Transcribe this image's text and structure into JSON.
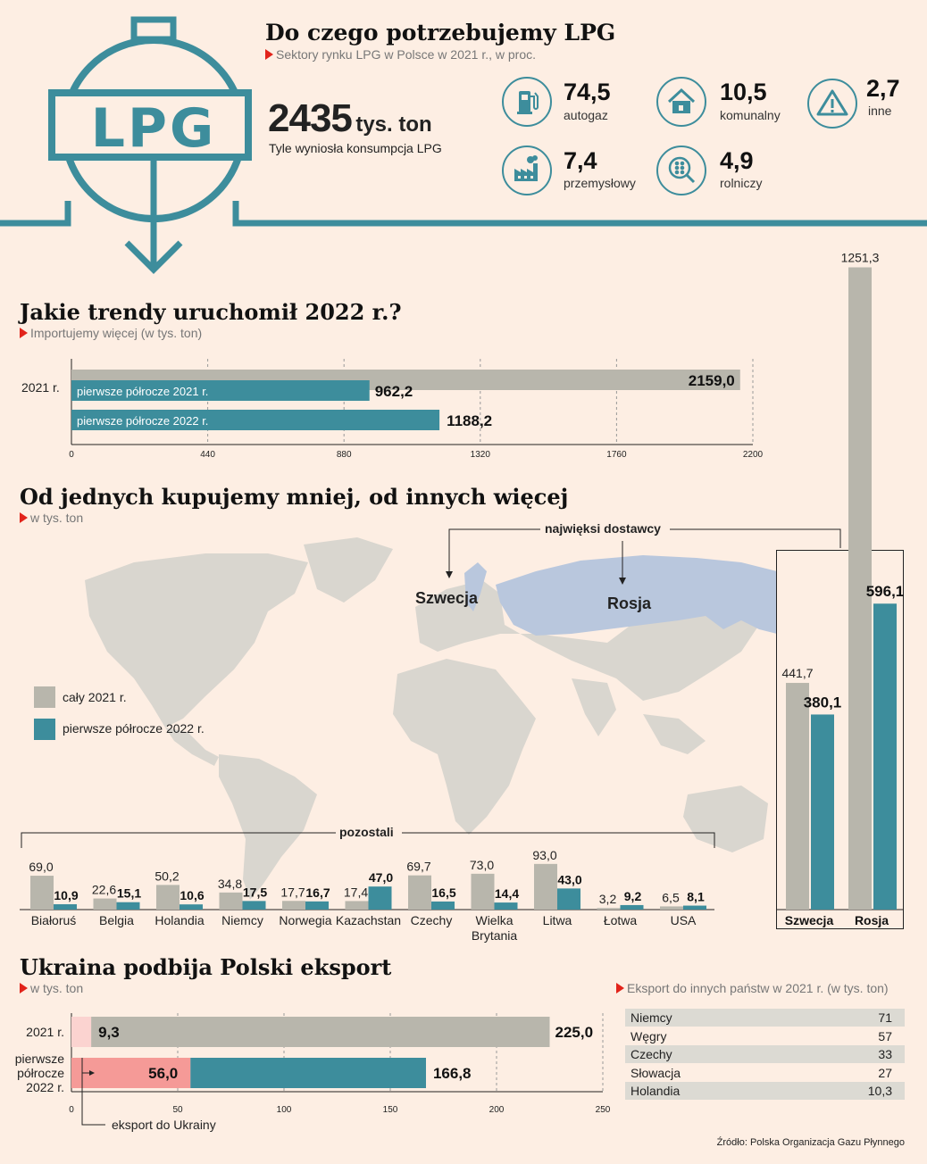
{
  "header": {
    "logo_text": "LPG",
    "title": "Do czego potrzebujemy LPG",
    "subtitle": "Sektory rynku LPG w Polsce w 2021 r., w proc.",
    "consumption_value": "2435",
    "consumption_unit": "tys. ton",
    "consumption_caption": "Tyle wyniosła konsumpcja LPG"
  },
  "sectors": [
    {
      "value": "74,5",
      "label": "autogaz",
      "icon": "fuel-pump-icon"
    },
    {
      "value": "10,5",
      "label": "komunalny",
      "icon": "house-icon"
    },
    {
      "value": "2,7",
      "label": "inne",
      "icon": "warning-icon"
    },
    {
      "value": "7,4",
      "label": "przemysłowy",
      "icon": "factory-icon"
    },
    {
      "value": "4,9",
      "label": "rolniczy",
      "icon": "grain-search-icon"
    }
  ],
  "trends": {
    "title": "Jakie trendy uruchomił 2022 r.?",
    "subtitle": "Importujemy więcej (w tys. ton)"
  },
  "suppliers": {
    "title": "Od jednych kupujemy mniej, od innych więcej",
    "subtitle": "w tys. ton",
    "biggest_label": "najwięksi dostawcy",
    "map_label_sweden": "Szwecja",
    "map_label_russia": "Rosja",
    "legend_2021": "cały 2021 r.",
    "legend_2022": "pierwsze półrocze 2022 r.",
    "others_label": "pozostali"
  },
  "ukraine": {
    "title": "Ukraina podbija Polski eksport",
    "subtitle": "w tys. ton",
    "pointer_label": "eksport do Ukrainy"
  },
  "export_table": {
    "title": "Eksport do innych państw w 2021 r. (w tys. ton)",
    "rows": [
      {
        "country": "Niemcy",
        "value": "71"
      },
      {
        "country": "Węgry",
        "value": "57"
      },
      {
        "country": "Czechy",
        "value": "33"
      },
      {
        "country": "Słowacja",
        "value": "27"
      },
      {
        "country": "Holandia",
        "value": "10,3"
      }
    ]
  },
  "source": "Źródło: Polska Organizacja Gazu Płynnego",
  "colors": {
    "gray": "#b8b6ac",
    "teal": "#3d8d9c",
    "pink": "#f59a97",
    "lightpink": "#fbd3d0",
    "red": "#e2231a",
    "map": "#d9d6cf",
    "russia": "#b9c7dd"
  },
  "chart_data": [
    {
      "type": "bar",
      "orientation": "horizontal",
      "category": "2021 r.",
      "series": [
        {
          "name": "2021 r.",
          "value": 2159.0,
          "value_label": "2159,0",
          "color": "#b8b6ac"
        },
        {
          "name": "pierwsze półrocze 2021 r.",
          "value": 962.2,
          "value_label": "962,2",
          "color": "#3d8d9c"
        },
        {
          "name": "pierwsze półrocze 2022 r.",
          "value": 1188.2,
          "value_label": "1188,2",
          "color": "#3d8d9c"
        }
      ],
      "xlim": [
        0,
        2200
      ],
      "xticks": [
        "0",
        "440",
        "880",
        "1320",
        "1760",
        "2200"
      ]
    },
    {
      "type": "bar",
      "series_names": [
        "cały 2021 r.",
        "pierwsze półrocze 2022 r."
      ],
      "categories": [
        "Białoruś",
        "Belgia",
        "Holandia",
        "Niemcy",
        "Norwegia",
        "Kazachstan",
        "Czechy",
        "Wielka Brytania",
        "Litwa",
        "Łotwa",
        "USA"
      ],
      "values_2021": [
        69.0,
        22.6,
        50.2,
        34.8,
        17.7,
        17.4,
        69.7,
        73.0,
        93.0,
        3.2,
        6.5
      ],
      "values_2022": [
        10.9,
        15.1,
        10.6,
        17.5,
        16.7,
        47.0,
        16.5,
        14.4,
        43.0,
        9.2,
        8.1
      ],
      "labels_2021": [
        "69,0",
        "22,6",
        "50,2",
        "34,8",
        "17,7",
        "17,4",
        "69,7",
        "73,0",
        "93,0",
        "3,2",
        "6,5"
      ],
      "labels_2022": [
        "10,9",
        "15,1",
        "10,6",
        "17,5",
        "16,7",
        "47,0",
        "16,5",
        "14,4",
        "43,0",
        "9,2",
        "8,1"
      ]
    },
    {
      "type": "bar",
      "categories": [
        "Szwecja",
        "Rosja"
      ],
      "values_2021": [
        441.7,
        1251.3
      ],
      "values_2022": [
        380.1,
        596.1
      ],
      "labels_2021": [
        "441,7",
        "1251,3"
      ],
      "labels_2022": [
        "380,1",
        "596,1"
      ]
    },
    {
      "type": "bar",
      "orientation": "horizontal",
      "stacked": true,
      "categories": [
        "2021 r.",
        "pierwsze półrocze 2022 r."
      ],
      "ukraine": [
        9.3,
        56.0
      ],
      "ukraine_labels": [
        "9,3",
        "56,0"
      ],
      "total": [
        225.0,
        166.8
      ],
      "total_labels": [
        "225,0",
        "166,8"
      ],
      "xlim": [
        0,
        250
      ],
      "xticks": [
        "0",
        "50",
        "100",
        "150",
        "200",
        "250"
      ]
    }
  ]
}
